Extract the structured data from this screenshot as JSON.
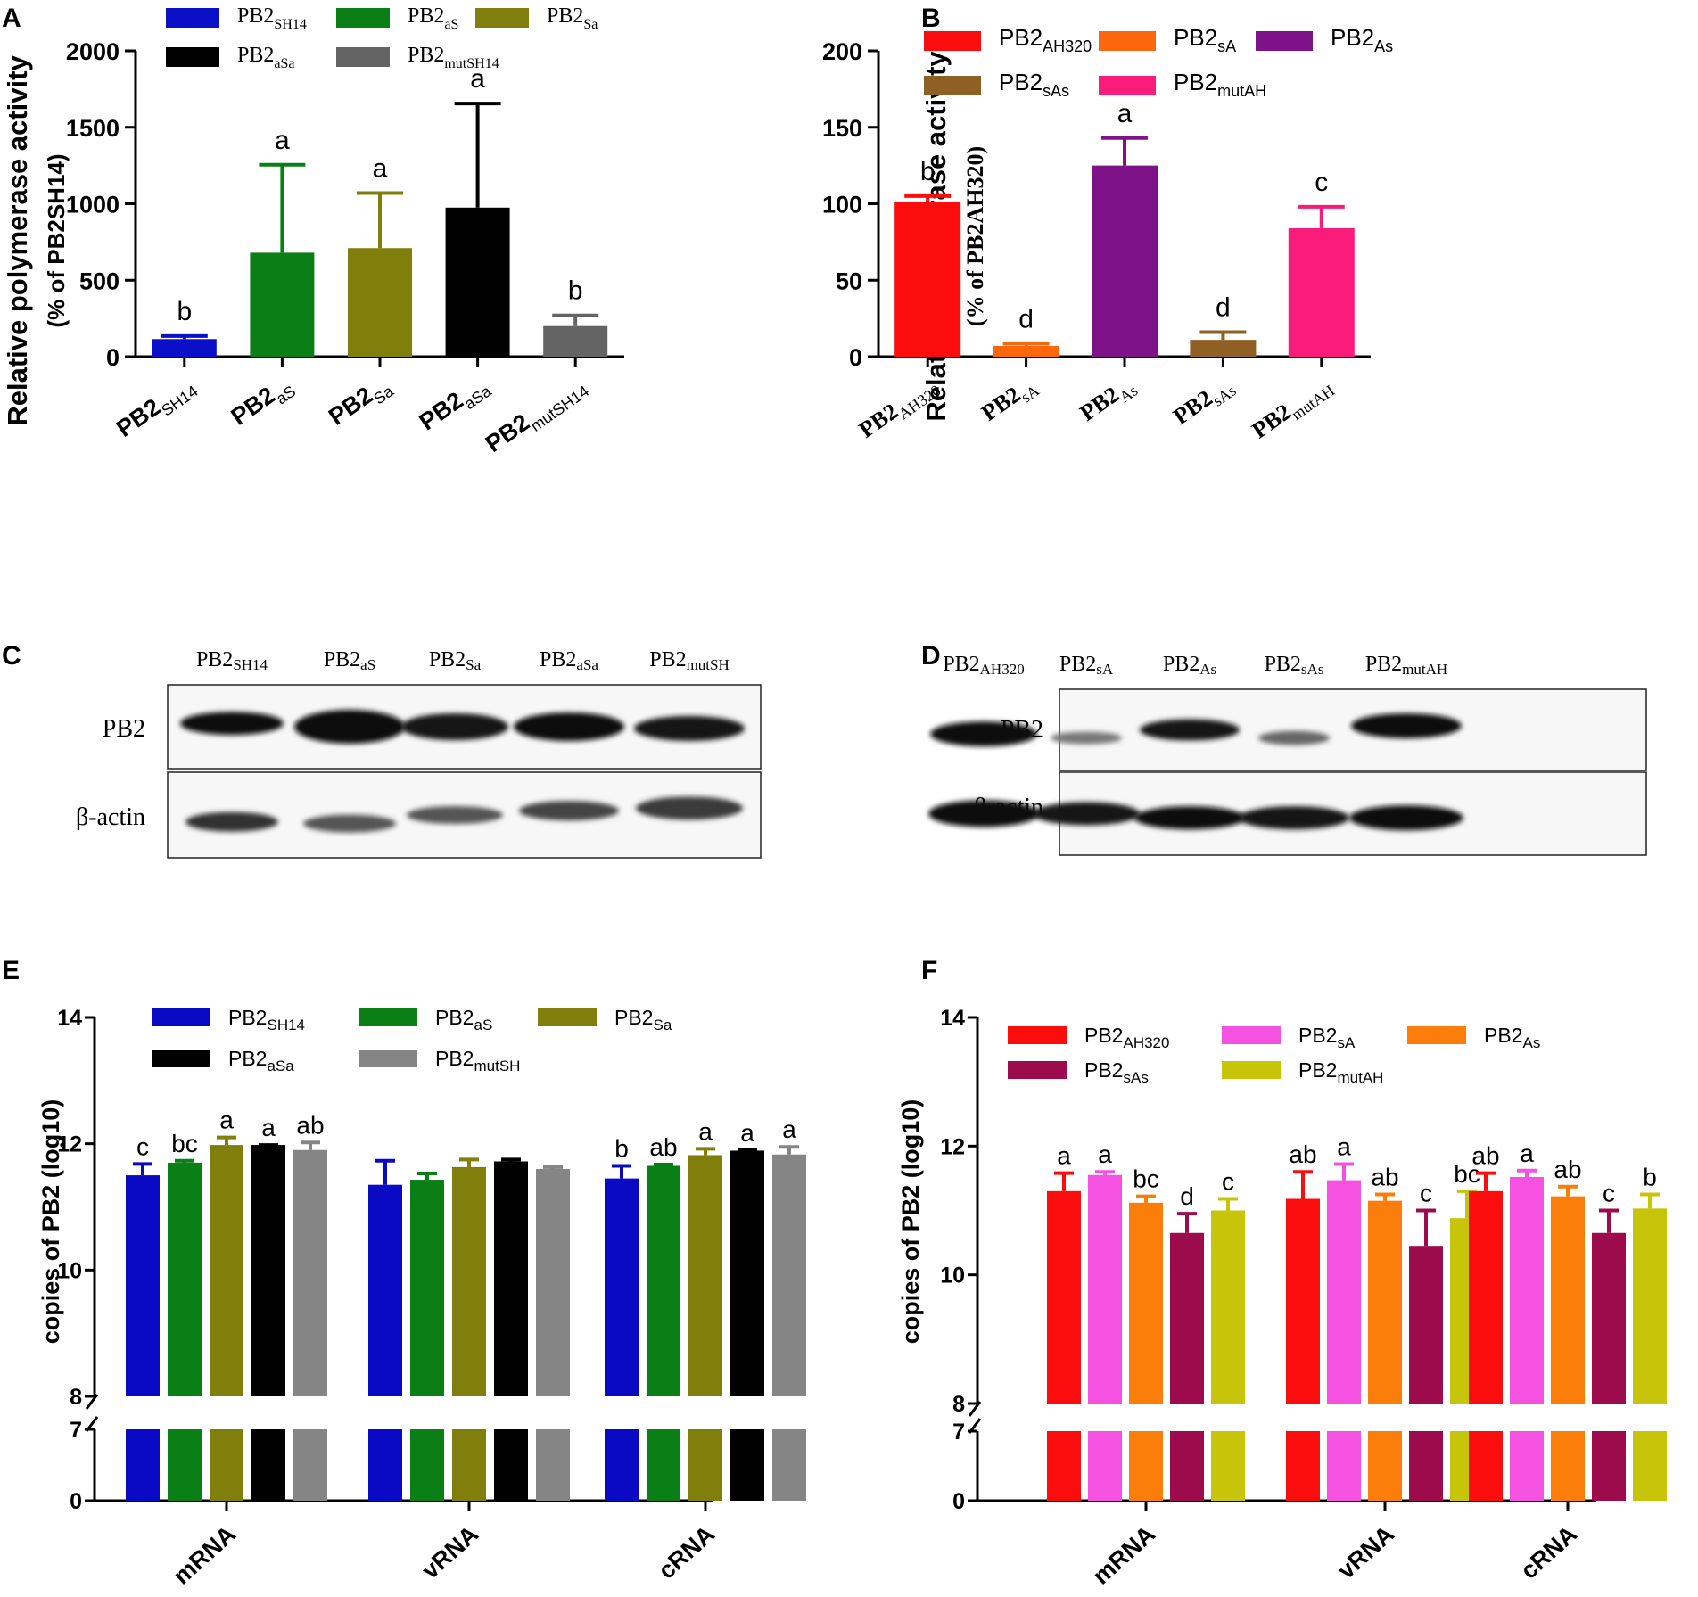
{
  "panel_labels": {
    "A": "A",
    "B": "B",
    "C": "C",
    "D": "D",
    "E": "E",
    "F": "F"
  },
  "chart_data": [
    {
      "panel": "A",
      "type": "bar",
      "ylabel": "Relative polymerase activity",
      "ylabel2": "(% of PB2SH14)",
      "ylim": [
        0,
        2000
      ],
      "yticks": [
        0,
        500,
        1000,
        1500,
        2000
      ],
      "categories": [
        {
          "base": "PB2",
          "sub": "SH14"
        },
        {
          "base": "PB2",
          "sub": "aS"
        },
        {
          "base": "PB2",
          "sub": "Sa"
        },
        {
          "base": "PB2",
          "sub": "aSa"
        },
        {
          "base": "PB2",
          "sub": "mutSH14"
        }
      ],
      "values": [
        115,
        680,
        710,
        975,
        200
      ],
      "errors": [
        20,
        575,
        360,
        680,
        70
      ],
      "letters": [
        "b",
        "a",
        "a",
        "a",
        "b"
      ],
      "colors": [
        "#0a10c8",
        "#0a7f16",
        "#817f0b",
        "#000000",
        "#646464"
      ],
      "legend": [
        {
          "base": "PB2",
          "sub": "SH14"
        },
        {
          "base": "PB2",
          "sub": "aS"
        },
        {
          "base": "PB2",
          "sub": "Sa"
        },
        {
          "base": "PB2",
          "sub": "aSa"
        },
        {
          "base": "PB2",
          "sub": "mutSH14"
        }
      ]
    },
    {
      "panel": "B",
      "type": "bar",
      "ylabel": "Relative polymerase activity",
      "ylabel2": "(% of PB2AH320)",
      "ylim": [
        0,
        200
      ],
      "yticks": [
        0,
        50,
        100,
        150,
        200
      ],
      "categories": [
        {
          "base": "PB2",
          "sub": "AH320"
        },
        {
          "base": "PB2",
          "sub": "sA"
        },
        {
          "base": "PB2",
          "sub": "As"
        },
        {
          "base": "PB2",
          "sub": "sAs"
        },
        {
          "base": "PB2",
          "sub": "mutAH"
        }
      ],
      "values": [
        101,
        7,
        125,
        11,
        84
      ],
      "errors": [
        4,
        1.5,
        18,
        5,
        14
      ],
      "letters": [
        "b",
        "d",
        "a",
        "d",
        "c"
      ],
      "colors": [
        "#fc0d0d",
        "#fc660d",
        "#7e1288",
        "#8f6023",
        "#f91c7a"
      ],
      "legend": [
        {
          "base": "PB2",
          "sub": "AH320"
        },
        {
          "base": "PB2",
          "sub": "sA"
        },
        {
          "base": "PB2",
          "sub": "As"
        },
        {
          "base": "PB2",
          "sub": "sAs"
        },
        {
          "base": "PB2",
          "sub": "mutAH"
        }
      ]
    },
    {
      "panel": "E",
      "type": "bar",
      "ylabel": "copies of PB2  (log10)",
      "ylim": [
        0,
        14
      ],
      "yticks": [
        0,
        7,
        8,
        10,
        12,
        14
      ],
      "axis_break": [
        7,
        8
      ],
      "groups": [
        "mRNA",
        "vRNA",
        "cRNA"
      ],
      "series": [
        {
          "base": "PB2",
          "sub": "SH14",
          "color": "#0a0ac4",
          "values": [
            11.5,
            11.35,
            11.45
          ],
          "errors": [
            0.18,
            0.38,
            0.2
          ]
        },
        {
          "base": "PB2",
          "sub": "aS",
          "color": "#0a7f16",
          "values": [
            11.7,
            11.43,
            11.65
          ],
          "errors": [
            0.03,
            0.1,
            0.02
          ]
        },
        {
          "base": "PB2",
          "sub": "Sa",
          "color": "#817f0b",
          "values": [
            11.98,
            11.63,
            11.82
          ],
          "errors": [
            0.12,
            0.12,
            0.1
          ]
        },
        {
          "base": "PB2",
          "sub": "aSa",
          "color": "#000000",
          "values": [
            11.98,
            11.72,
            11.89
          ],
          "errors": [
            0.0,
            0.03,
            0.01
          ]
        },
        {
          "base": "PB2",
          "sub": "mutSH",
          "color": "#858585",
          "values": [
            11.9,
            11.6,
            11.83
          ],
          "errors": [
            0.12,
            0.03,
            0.12
          ]
        }
      ],
      "letters": [
        [
          "c",
          "bc",
          "a",
          "a",
          "ab"
        ],
        [
          "",
          "",
          "",
          "",
          ""
        ],
        [
          "b",
          "ab",
          "a",
          "a",
          "a"
        ]
      ]
    },
    {
      "panel": "F",
      "type": "bar",
      "ylabel": "copies of PB2  (log10)",
      "ylim": [
        0,
        14
      ],
      "yticks": [
        0,
        7,
        8,
        10,
        12,
        14
      ],
      "axis_break": [
        7,
        8
      ],
      "groups": [
        "mRNA",
        "vRNA",
        "cRNA"
      ],
      "series": [
        {
          "base": "PB2",
          "sub": "AH320",
          "color": "#fc0d0d",
          "values": [
            11.3,
            11.18,
            11.3
          ],
          "errors": [
            0.28,
            0.42,
            0.28
          ]
        },
        {
          "base": "PB2",
          "sub": "sA",
          "color": "#f552e2",
          "values": [
            11.55,
            11.47,
            11.52
          ],
          "errors": [
            0.05,
            0.25,
            0.1
          ]
        },
        {
          "base": "PB2",
          "sub": "As",
          "color": "#fc7e0a",
          "values": [
            11.12,
            11.15,
            11.22
          ],
          "errors": [
            0.1,
            0.1,
            0.15
          ]
        },
        {
          "base": "PB2",
          "sub": "sAs",
          "color": "#9c0b4c",
          "values": [
            10.65,
            10.45,
            10.65
          ],
          "errors": [
            0.3,
            0.55,
            0.35
          ]
        },
        {
          "base": "PB2",
          "sub": "mutAH",
          "color": "#c7c50a",
          "values": [
            11.0,
            10.88,
            11.03
          ],
          "errors": [
            0.18,
            0.42,
            0.22
          ]
        }
      ],
      "letters": [
        [
          "a",
          "a",
          "bc",
          "d",
          "c"
        ],
        [
          "ab",
          "a",
          "ab",
          "c",
          "bc"
        ],
        [
          "ab",
          "a",
          "ab",
          "c",
          "b"
        ]
      ]
    }
  ],
  "westerns": [
    {
      "panel": "C",
      "lanes": [
        {
          "base": "PB2",
          "sub": "SH14"
        },
        {
          "base": "PB2",
          "sub": "aS"
        },
        {
          "base": "PB2",
          "sub": "Sa"
        },
        {
          "base": "PB2",
          "sub": "aSa"
        },
        {
          "base": "PB2",
          "sub": "mutSH"
        }
      ],
      "row_labels": [
        "PB2",
        "β-actin"
      ]
    },
    {
      "panel": "D",
      "lanes": [
        {
          "base": "PB2",
          "sub": "AH320"
        },
        {
          "base": "PB2",
          "sub": "sA"
        },
        {
          "base": "PB2",
          "sub": "As"
        },
        {
          "base": "PB2",
          "sub": "sAs"
        },
        {
          "base": "PB2",
          "sub": "mutAH"
        }
      ],
      "row_labels": [
        "PB2",
        "β-actin"
      ]
    }
  ]
}
